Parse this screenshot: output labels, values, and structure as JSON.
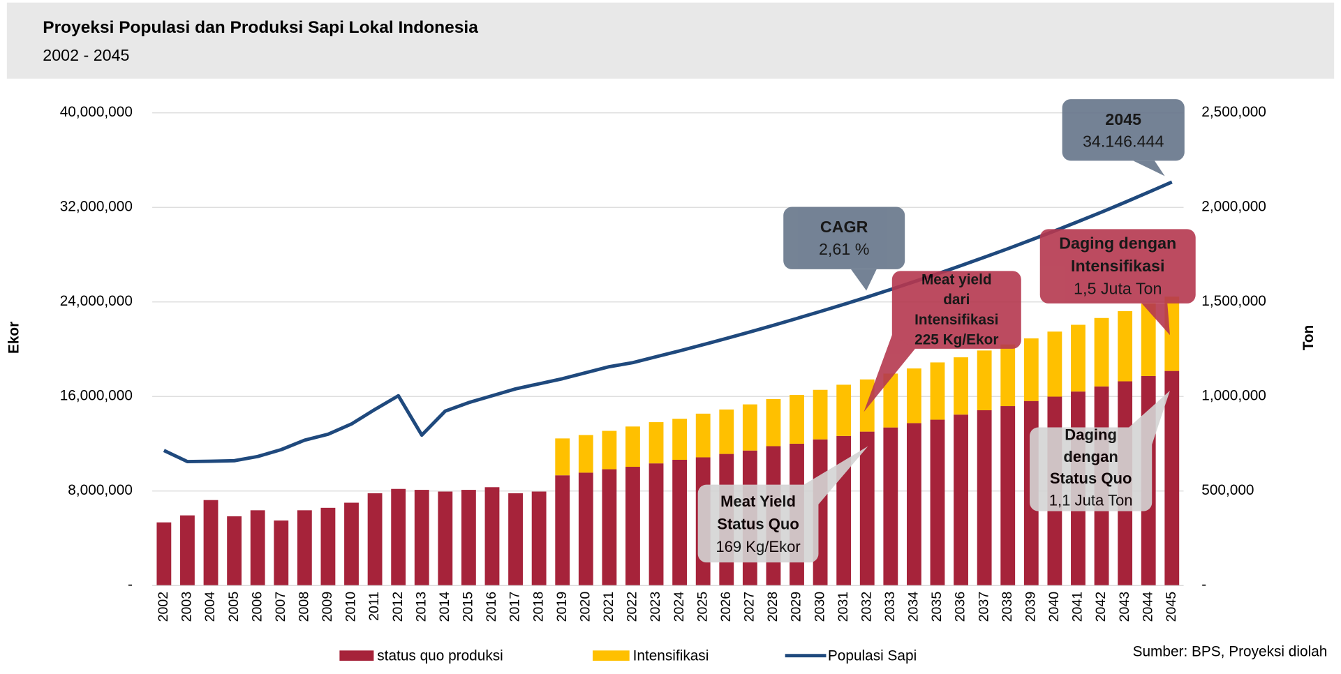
{
  "chart_data": {
    "type": "bar",
    "stacked": true,
    "title": "Proyeksi Populasi dan Produksi Sapi Lokal Indonesia",
    "subtitle": "2002 - 2045",
    "y_label": "Ekor",
    "y2_label": "Ton",
    "source": "Sumber: BPS, Proyeksi diolah",
    "grid": true,
    "legend": "bottom",
    "categories": [
      "2002",
      "2003",
      "2004",
      "2005",
      "2006",
      "2007",
      "2008",
      "2009",
      "2010",
      "2011",
      "2012",
      "2013",
      "2014",
      "2015",
      "2016",
      "2017",
      "2018",
      "2019",
      "2020",
      "2021",
      "2022",
      "2023",
      "2024",
      "2025",
      "2026",
      "2027",
      "2028",
      "2029",
      "2030",
      "2031",
      "2032",
      "2033",
      "2034",
      "2035",
      "2036",
      "2037",
      "2038",
      "2039",
      "2040",
      "2041",
      "2042",
      "2043",
      "2044",
      "2045"
    ],
    "ylim": [
      0,
      40000000
    ],
    "yticks": [
      {
        "value": 0,
        "label": "-"
      },
      {
        "value": 8000000,
        "label": "8,000,000"
      },
      {
        "value": 16000000,
        "label": "16,000,000"
      },
      {
        "value": 24000000,
        "label": "24,000,000"
      },
      {
        "value": 32000000,
        "label": "32,000,000"
      },
      {
        "value": 40000000,
        "label": "40,000,000"
      }
    ],
    "y2lim": [
      0,
      2500000
    ],
    "y2ticks": [
      {
        "value": 0,
        "label": "-"
      },
      {
        "value": 500000,
        "label": "500,000"
      },
      {
        "value": 1000000,
        "label": "1,000,000"
      },
      {
        "value": 1500000,
        "label": "1,500,000"
      },
      {
        "value": 2000000,
        "label": "2,000,000"
      },
      {
        "value": 2500000,
        "label": "2,500,000"
      }
    ],
    "series": [
      {
        "name": "status quo produksi",
        "type": "bar",
        "axis": "y2",
        "color": "#a6233a",
        "values": [
          334000,
          371000,
          452000,
          366000,
          398000,
          344000,
          398000,
          411000,
          438000,
          488000,
          511000,
          506000,
          497000,
          506000,
          520000,
          488000,
          497000,
          583000,
          597000,
          615000,
          628000,
          646000,
          665000,
          678000,
          696000,
          714000,
          737000,
          750000,
          773000,
          791000,
          814000,
          836000,
          859000,
          877000,
          904000,
          927000,
          949000,
          976000,
          999000,
          1026000,
          1053000,
          1080000,
          1108000,
          1135000
        ]
      },
      {
        "name": "Intensifikasi",
        "type": "bar",
        "axis": "y2",
        "color": "#ffc000",
        "values": [
          null,
          null,
          null,
          null,
          null,
          null,
          null,
          null,
          null,
          null,
          null,
          null,
          null,
          null,
          null,
          null,
          null,
          195000,
          199000,
          203000,
          213000,
          218000,
          217000,
          231000,
          235000,
          244000,
          249000,
          258000,
          262000,
          271000,
          276000,
          285000,
          289000,
          303000,
          303000,
          316000,
          326000,
          331000,
          344000,
          353000,
          362000,
          371000,
          384000,
          393000
        ]
      },
      {
        "name": "Populasi Sapi",
        "type": "line",
        "color": "#1f497d",
        "values": [
          11430000,
          10490000,
          10520000,
          10560000,
          10920000,
          11500000,
          12300000,
          12800000,
          13670000,
          14900000,
          16060000,
          12730000,
          14760000,
          15480000,
          16060000,
          16640000,
          17070000,
          17500000,
          18010000,
          18520000,
          18860000,
          19360000,
          19860000,
          20380000,
          20910000,
          21460000,
          22020000,
          22600000,
          23190000,
          23790000,
          24410000,
          25050000,
          25710000,
          26380000,
          27070000,
          27780000,
          28500000,
          29250000,
          30010000,
          30800000,
          31600000,
          32430000,
          33280000,
          34146444
        ]
      }
    ],
    "annotations": [
      {
        "lines": [
          "2045",
          "34.146.444"
        ],
        "bold": 1,
        "color": "#66758a"
      },
      {
        "lines": [
          "CAGR",
          "2,61 %"
        ],
        "bold": 1,
        "color": "#66758a"
      },
      {
        "lines": [
          "Meat yield",
          "dari",
          "Intensifikasi",
          "225 Kg/Ekor"
        ],
        "bold": 4,
        "color": "#b5384f"
      },
      {
        "lines": [
          "Daging dengan",
          "Intensifikasi",
          "1,5 Juta Ton"
        ],
        "bold": 2,
        "color": "#b5384f"
      },
      {
        "lines": [
          "Meat Yield",
          "Status Quo",
          "169 Kg/Ekor"
        ],
        "bold": 2,
        "color": "#d4d4d4"
      },
      {
        "lines": [
          "Daging",
          "dengan",
          "Status Quo",
          "1,1 Juta Ton"
        ],
        "bold": 3,
        "color": "#d4d4d4"
      }
    ]
  }
}
